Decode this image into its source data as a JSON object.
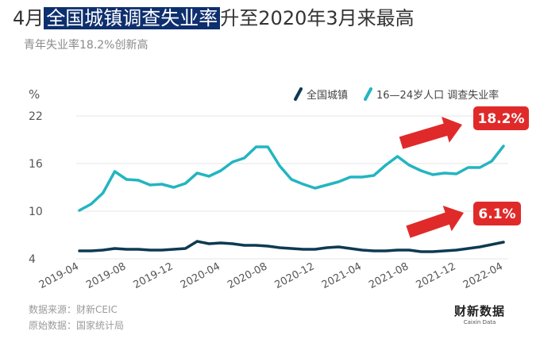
{
  "title": {
    "prefix": "4月",
    "highlight": "全国城镇调查失业率",
    "suffix": "升至2020年3月来最高"
  },
  "subtitle": "青年失业率18.2%创新高",
  "source_lines": [
    "数据来源：财新CEIC",
    "原始数据：国家统计局"
  ],
  "logo": {
    "main": "财新数据",
    "sub": "Caixin Data"
  },
  "colors": {
    "national": "#0e3a52",
    "youth": "#23b5c1",
    "callout": "#e02a2a",
    "grid": "#e4e4e4"
  },
  "chart_data": {
    "type": "line",
    "unit_label": "%",
    "ylim": [
      4,
      22
    ],
    "yticks": [
      4,
      10,
      16,
      22
    ],
    "x": [
      "2019-04",
      "2019-05",
      "2019-06",
      "2019-07",
      "2019-08",
      "2019-09",
      "2019-10",
      "2019-11",
      "2019-12",
      "2020-01",
      "2020-02",
      "2020-03",
      "2020-04",
      "2020-05",
      "2020-06",
      "2020-07",
      "2020-08",
      "2020-09",
      "2020-10",
      "2020-11",
      "2020-12",
      "2021-01",
      "2021-02",
      "2021-03",
      "2021-04",
      "2021-05",
      "2021-06",
      "2021-07",
      "2021-08",
      "2021-09",
      "2021-10",
      "2021-11",
      "2021-12",
      "2022-01",
      "2022-02",
      "2022-03",
      "2022-04"
    ],
    "xtick_labels": [
      "2019-04",
      "2019-08",
      "2019-12",
      "2020-04",
      "2020-08",
      "2020-12",
      "2021-04",
      "2021-08",
      "2021-12",
      "2022-04"
    ],
    "series": [
      {
        "name": "全国城镇",
        "values": [
          5.0,
          5.0,
          5.1,
          5.3,
          5.2,
          5.2,
          5.1,
          5.1,
          5.2,
          5.3,
          6.2,
          5.9,
          6.0,
          5.9,
          5.7,
          5.7,
          5.6,
          5.4,
          5.3,
          5.2,
          5.2,
          5.4,
          5.5,
          5.3,
          5.1,
          5.0,
          5.0,
          5.1,
          5.1,
          4.9,
          4.9,
          5.0,
          5.1,
          5.3,
          5.5,
          5.8,
          6.1
        ]
      },
      {
        "name": "16—24岁人口 调查失业率",
        "values": [
          10.1,
          10.9,
          12.3,
          15.0,
          14.0,
          13.9,
          13.3,
          13.4,
          13.0,
          13.5,
          14.8,
          14.4,
          15.1,
          16.2,
          16.7,
          18.1,
          18.1,
          15.7,
          14.0,
          13.4,
          12.9,
          13.3,
          13.7,
          14.3,
          14.3,
          14.5,
          15.8,
          16.9,
          15.8,
          15.1,
          14.6,
          14.8,
          14.7,
          15.5,
          15.5,
          16.3,
          18.2
        ]
      }
    ],
    "annotations": [
      "18.2%",
      "6.1%"
    ]
  }
}
